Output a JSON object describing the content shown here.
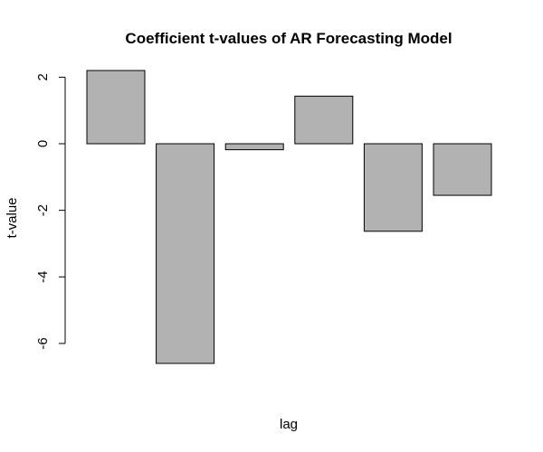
{
  "chart_data": {
    "type": "bar",
    "title": "Coefficient t-values of AR Forecasting Model",
    "xlabel": "lag",
    "ylabel": "t-value",
    "categories": [
      "",
      "",
      "",
      "",
      "",
      ""
    ],
    "values": [
      2.2,
      -6.6,
      -0.18,
      1.43,
      -2.63,
      -1.55
    ],
    "ylim": [
      -6.6,
      2.2
    ],
    "yticks": [
      -6,
      -4,
      -2,
      0,
      2
    ],
    "grid": false,
    "legend": "none",
    "bar_color": "#b2b2b2",
    "border_color": "#000000"
  }
}
